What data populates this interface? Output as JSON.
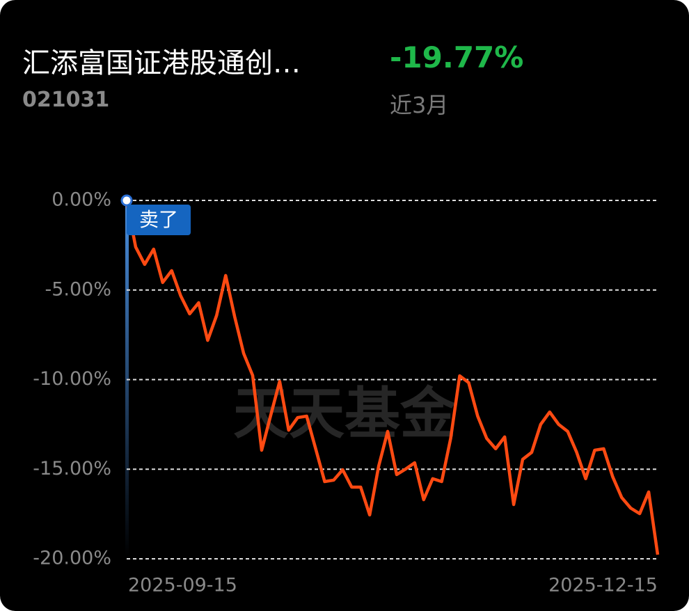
{
  "header": {
    "title": "汇添富国证港股通创…",
    "code": "021031",
    "return": "-19.77%",
    "period": "近3月"
  },
  "chart_data": {
    "type": "line",
    "watermark": "天天基金",
    "marker_label": "卖了",
    "categories": [
      "2025-09-15",
      null,
      null,
      null,
      null,
      null,
      null,
      null,
      null,
      null,
      null,
      null,
      null,
      null,
      null,
      null,
      null,
      null,
      null,
      null,
      null,
      null,
      null,
      null,
      null,
      null,
      null,
      null,
      null,
      null,
      null,
      null,
      null,
      null,
      null,
      null,
      null,
      null,
      null,
      null,
      null,
      null,
      null,
      null,
      null,
      null,
      null,
      null,
      null,
      null,
      null,
      null,
      null,
      null,
      null,
      null,
      null,
      null,
      null,
      "2025-12-15"
    ],
    "series": [
      {
        "name": "汇添富国证港股通创…",
        "color": "#ff4a12",
        "values": [
          0,
          -2.6,
          -3.57,
          -2.72,
          -4.58,
          -3.92,
          -5.32,
          -6.33,
          -5.71,
          -7.81,
          -6.41,
          -4.19,
          -6.49,
          -8.54,
          -9.77,
          -13.94,
          -12.0,
          -10.1,
          -12.82,
          -12.12,
          -12.04,
          -13.86,
          -15.69,
          -15.61,
          -15.03,
          -16.0,
          -16.0,
          -17.55,
          -14.83,
          -12.89,
          -15.3,
          -14.99,
          -14.64,
          -16.7,
          -15.53,
          -15.69,
          -13.28,
          -9.79,
          -10.17,
          -12.04,
          -13.28,
          -13.86,
          -13.2,
          -16.97,
          -14.45,
          -14.06,
          -12.5,
          -11.81,
          -12.5,
          -12.89,
          -14.06,
          -15.53,
          -13.94,
          -13.86,
          -15.42,
          -16.58,
          -17.17,
          -17.48,
          -16.27,
          -19.77
        ]
      }
    ],
    "ylim": [
      -20,
      0
    ],
    "yticks": [
      {
        "value": 0,
        "label": "0.00%"
      },
      {
        "value": -5,
        "label": "-5.00%"
      },
      {
        "value": -10,
        "label": "-10.00%"
      },
      {
        "value": -15,
        "label": "-15.00%"
      },
      {
        "value": -20,
        "label": "-20.00%"
      }
    ],
    "grid": true
  }
}
